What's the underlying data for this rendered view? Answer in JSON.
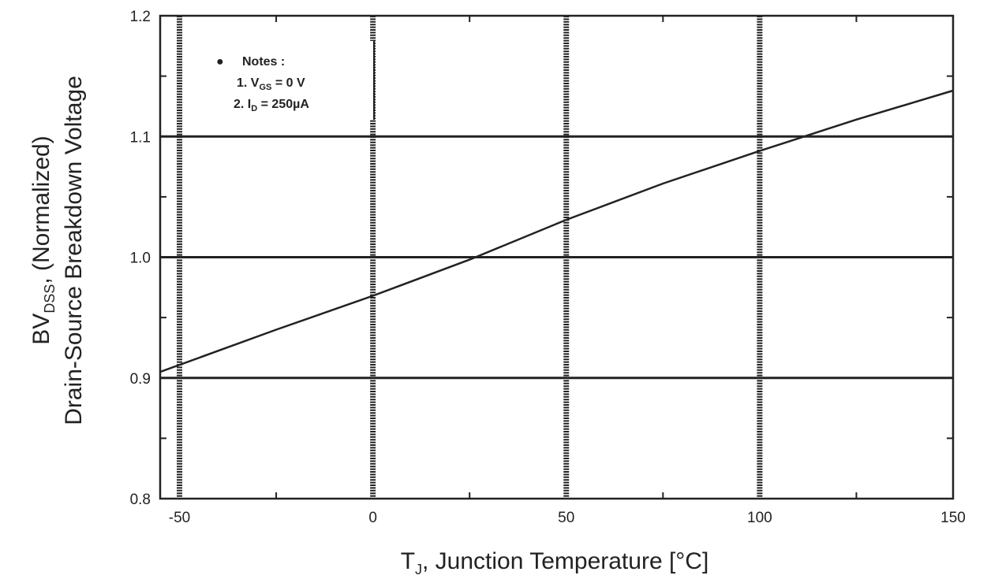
{
  "chart_data": {
    "type": "line",
    "xlabel": {
      "main": "T",
      "sub": "J",
      "rest": ", Junction Temperature [°C]"
    },
    "ylabel": {
      "line1_main": "BV",
      "line1_sub": "DSS",
      "line1_rest": ", (Normalized)",
      "line2": "Drain-Source Breakdown Voltage"
    },
    "xlim": [
      -55,
      150
    ],
    "ylim": [
      0.8,
      1.2
    ],
    "x_ticks": [
      -50,
      0,
      50,
      100,
      150
    ],
    "y_ticks": [
      0.8,
      0.9,
      1.0,
      1.1,
      1.2
    ],
    "grid": true,
    "series": [
      {
        "x": [
          -55,
          -25,
          0,
          25,
          50,
          75,
          100,
          125,
          150
        ],
        "y": [
          0.905,
          0.94,
          0.968,
          0.998,
          1.031,
          1.061,
          1.088,
          1.114,
          1.138
        ]
      }
    ],
    "notes": {
      "header": "Notes :",
      "line1_prefix": "1. V",
      "line1_sub": "GS",
      "line1_rest": " = 0 V",
      "line2_prefix": "2. I",
      "line2_sub": "D",
      "line2_rest": " = 250µA"
    }
  }
}
